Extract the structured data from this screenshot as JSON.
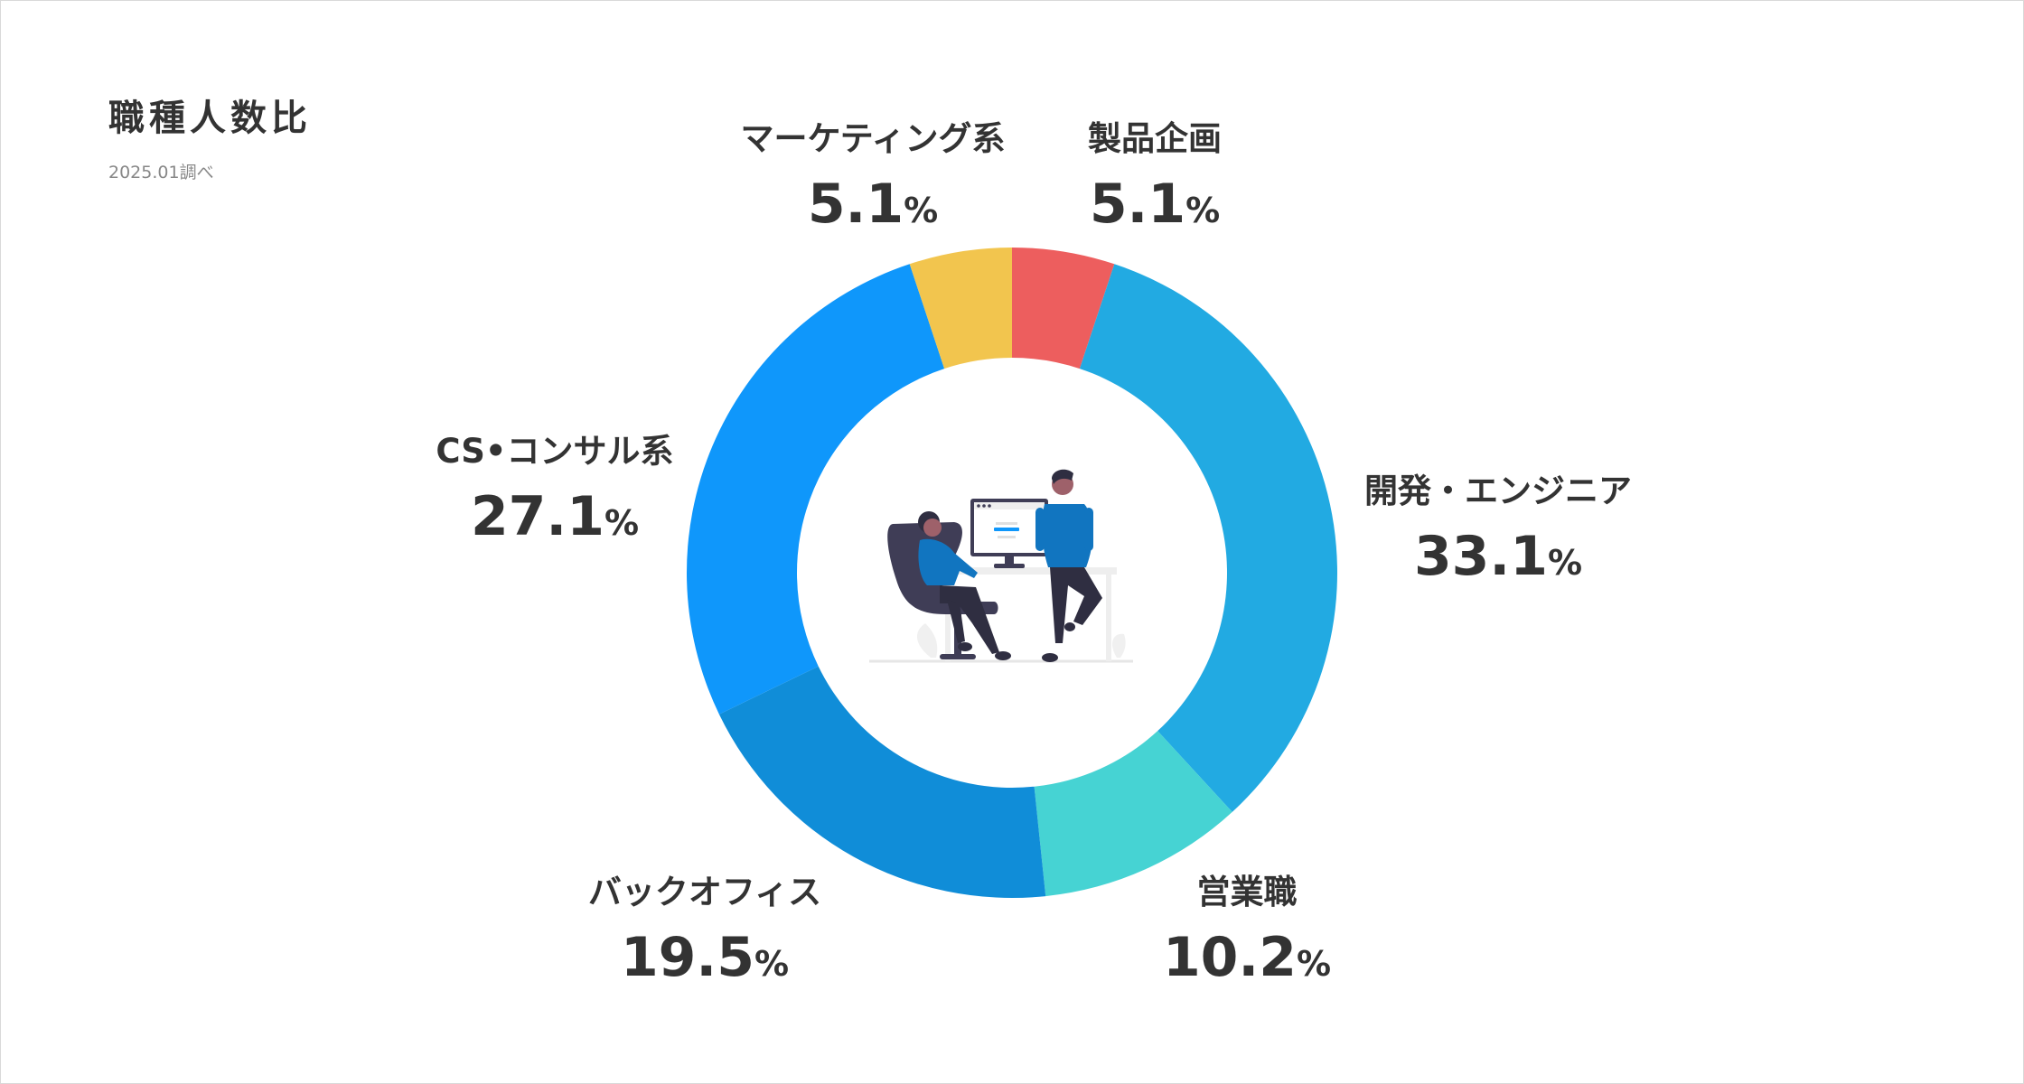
{
  "title": "職種人数比",
  "subtitle": "2025.01調べ",
  "chart_data": {
    "type": "pie",
    "variant": "donut",
    "unit": "%",
    "slices": [
      {
        "label": "製品企画",
        "value": 5.1,
        "color": "#ED5E5E"
      },
      {
        "label": "開発・エンジニア",
        "value": 33.1,
        "color": "#22AAE2"
      },
      {
        "label": "営業職",
        "value": 10.2,
        "color": "#46D3D3"
      },
      {
        "label": "バックオフィス",
        "value": 19.5,
        "color": "#108DD8"
      },
      {
        "label": "CS•コンサル系",
        "value": 27.1,
        "color": "#0F97FB"
      },
      {
        "label": "マーケティング系",
        "value": 5.1,
        "color": "#F2C54E"
      }
    ]
  }
}
